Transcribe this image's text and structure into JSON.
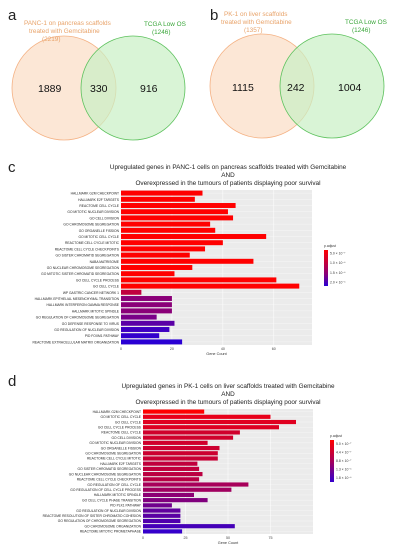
{
  "panels": {
    "a": {
      "letter": "a",
      "left": {
        "label_lines": [
          "PANC-1 on pancreas scaffolds",
          "treated with Gemcitabine",
          "(2219)"
        ],
        "color": "#f4b183",
        "fill": "#fbe3cf"
      },
      "right": {
        "label_lines": [
          "TCGA Low OS",
          "(1246)"
        ],
        "color": "#5cc15c",
        "fill": "#c9efc4"
      },
      "overlap_fill": "#d6dca3",
      "counts": {
        "left_only": "1889",
        "both": "330",
        "right_only": "916"
      }
    },
    "b": {
      "letter": "b",
      "left": {
        "label_lines": [
          "PK-1 on liver scaffolds",
          "treated with Gemcitabine",
          "(1357)"
        ],
        "color": "#f4b183",
        "fill": "#fbe3cf"
      },
      "right": {
        "label_lines": [
          "TCGA Low OS",
          "(1246)"
        ],
        "color": "#5cc15c",
        "fill": "#c9efc4"
      },
      "overlap_fill": "#d6dca3",
      "counts": {
        "left_only": "1115",
        "both": "242",
        "right_only": "1004"
      }
    }
  },
  "chart_data": [
    {
      "panel": "c",
      "type": "bar",
      "orientation": "horizontal",
      "title_lines": [
        "Upregulated genes in PANC-1 cells on pancreas scaffolds treated with Gemcitabine",
        "AND",
        "Overexpressed in the tumours of patients displaying poor survival"
      ],
      "xlabel": "Gene Count",
      "ylabel": "",
      "xlim": [
        0,
        75
      ],
      "xticks": [
        0,
        20,
        40,
        60
      ],
      "legend": {
        "title": "p.adjust",
        "position": "right",
        "labels": [
          "5.0 × 10⁻⁷",
          "1.0 × 10⁻⁶",
          "1.5 × 10⁻⁶",
          "2.0 × 10⁻⁶"
        ],
        "colors": [
          "#ff0000",
          "#c80037",
          "#8a0078",
          "#2a00d4"
        ]
      },
      "categories": [
        "HALLMARK G2M CHECKPOINT",
        "HALLMARK E2F TARGETS",
        "REACTOME CELL CYCLE",
        "GO MITOTIC NUCLEAR DIVISION",
        "GO CELL DIVISION",
        "GO CHROMOSOME SEGREGATION",
        "GO ORGANELLE FISSION",
        "GO MITOTIC CELL CYCLE",
        "REACTOME CELL CYCLE MITOTIC",
        "REACTOME CELL CYCLE CHECKPOINTS",
        "GO SISTER CHROMATID SEGREGATION",
        "NABA MATRISOME",
        "GO NUCLEAR CHROMOSOME SEGREGATION",
        "GO MITOTIC SISTER CHROMATID SEGREGATION",
        "GO CELL CYCLE PROCESS",
        "GO CELL CYCLE",
        "WP GASTRIC CANCER NETWORK 1",
        "HALLMARK EPITHELIAL MESENCHYMAL TRANSITION",
        "HALLMARK INTERFERON GAMMA RESPONSE",
        "HALLMARK MITOTIC SPINDLE",
        "GO REGULATION OF CHROMOSOME SEGREGATION",
        "GO DEFENSE RESPONSE TO VIRUS",
        "GO REGULATION OF NUCLEAR DIVISION",
        "PID FOXM1 PATHWAY",
        "REACTOME EXTRACELLULAR MATRIX ORGANIZATION"
      ],
      "values": [
        32,
        29,
        45,
        42,
        44,
        35,
        37,
        57,
        40,
        33,
        27,
        52,
        28,
        21,
        61,
        70,
        8,
        20,
        20,
        20,
        14,
        21,
        19,
        15,
        24
      ],
      "colors": [
        "#ff0000",
        "#ff0000",
        "#ff0000",
        "#ff0000",
        "#ff0000",
        "#ff0000",
        "#ff0000",
        "#ff0000",
        "#ff0000",
        "#ff0000",
        "#ff0000",
        "#ff0000",
        "#ff0000",
        "#ff0000",
        "#ff0000",
        "#ff0000",
        "#c0003f",
        "#8a0078",
        "#8a0078",
        "#8a0078",
        "#7a0088",
        "#5b00a6",
        "#3f00c2",
        "#3300cc",
        "#2a00d4"
      ]
    },
    {
      "panel": "d",
      "type": "bar",
      "orientation": "horizontal",
      "title_lines": [
        "Upregulated genes in PK-1 cells on liver scaffolds treated with Gemcitabine",
        "AND",
        "Overexpressed in the tumours of patients displaying poor survival"
      ],
      "xlabel": "Gene Count",
      "ylabel": "",
      "xlim": [
        0,
        100
      ],
      "xticks": [
        0,
        25,
        50,
        75
      ],
      "legend": {
        "title": "p.adjust",
        "position": "right",
        "labels": [
          "5.0 × 10⁻⁷",
          "4.4 × 10⁻⁷",
          "8.8 × 10⁻⁷",
          "1.3 × 10⁻⁶",
          "1.8 × 10⁻⁶"
        ],
        "colors": [
          "#ff0000",
          "#d4002b",
          "#a8005a",
          "#6c0096",
          "#3500cc"
        ]
      },
      "categories": [
        "HALLMARK G2M CHECKPOINT",
        "GO MITOTIC CELL CYCLE",
        "GO CELL CYCLE",
        "GO CELL CYCLE PROCESS",
        "REACTOME CELL CYCLE",
        "GO CELL DIVISION",
        "GO MITOTIC NUCLEAR DIVISION",
        "GO ORGANELLE FISSION",
        "GO CHROMOSOME SEGREGATION",
        "REACTOME CELL CYCLE MITOTIC",
        "HALLMARK E2F TARGETS",
        "GO SISTER CHROMATID SEGREGATION",
        "GO NUCLEAR CHROMOSOME SEGREGATION",
        "REACTOME CELL CYCLE CHECKPOINTS",
        "GO REGULATION OF CELL CYCLE",
        "GO REGULATION OF CELL CYCLE PROCESS",
        "HALLMARK MITOTIC SPINDLE",
        "GO CELL CYCLE PHASE TRANSITION",
        "PID PLK1 PATHWAY",
        "GO REGULATION OF NUCLEAR DIVISION",
        "REACTOME RESOLUTION OF SISTER CHROMATID COHESION",
        "GO REGULATION OF CHROMOSOME SEGREGATION",
        "GO CHROMOSOME ORGANIZATION",
        "REACTOME MITOTIC PROMETAPHASE"
      ],
      "values": [
        36,
        75,
        90,
        80,
        57,
        53,
        38,
        45,
        44,
        44,
        32,
        33,
        35,
        33,
        62,
        52,
        30,
        38,
        17,
        22,
        22,
        22,
        54,
        23
      ],
      "colors": [
        "#ff0000",
        "#e8001a",
        "#e00020",
        "#dd0022",
        "#d0002c",
        "#d0002c",
        "#d0002c",
        "#cc0030",
        "#cc0030",
        "#c80034",
        "#c0003c",
        "#c0003c",
        "#bb0041",
        "#b80044",
        "#a8005a",
        "#a0005f",
        "#8c0074",
        "#80007d",
        "#70008d",
        "#60009d",
        "#5a00a3",
        "#5000ad",
        "#4500b8",
        "#3500cc"
      ]
    }
  ]
}
